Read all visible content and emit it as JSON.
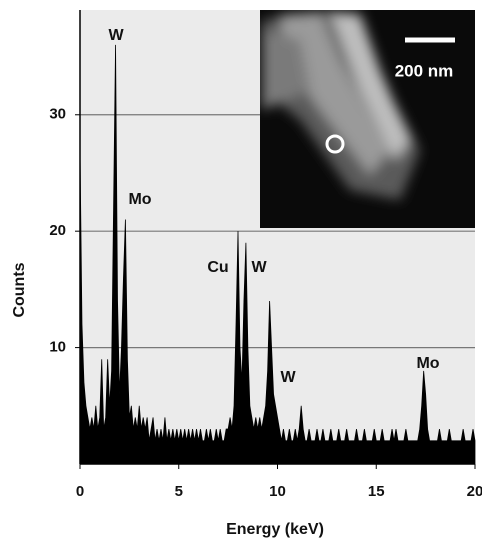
{
  "chart_data": {
    "type": "area",
    "x_label": "Energy (keV)",
    "y_label": "Counts",
    "x": [
      0.0,
      0.1,
      0.2,
      0.3,
      0.4,
      0.5,
      0.6,
      0.7,
      0.8,
      0.9,
      1.0,
      1.1,
      1.2,
      1.3,
      1.4,
      1.5,
      1.6,
      1.7,
      1.8,
      1.9,
      2.0,
      2.1,
      2.2,
      2.3,
      2.4,
      2.5,
      2.6,
      2.7,
      2.8,
      2.9,
      3.0,
      3.1,
      3.2,
      3.3,
      3.4,
      3.5,
      3.6,
      3.7,
      3.8,
      3.9,
      4.0,
      4.1,
      4.2,
      4.3,
      4.4,
      4.5,
      4.6,
      4.7,
      4.8,
      4.9,
      5.0,
      5.1,
      5.2,
      5.3,
      5.4,
      5.5,
      5.6,
      5.7,
      5.8,
      5.9,
      6.0,
      6.1,
      6.2,
      6.3,
      6.4,
      6.5,
      6.6,
      6.7,
      6.8,
      6.9,
      7.0,
      7.1,
      7.2,
      7.3,
      7.4,
      7.5,
      7.6,
      7.7,
      7.8,
      7.9,
      8.0,
      8.1,
      8.2,
      8.3,
      8.4,
      8.5,
      8.6,
      8.7,
      8.8,
      8.9,
      9.0,
      9.1,
      9.2,
      9.3,
      9.4,
      9.5,
      9.6,
      9.7,
      9.8,
      9.9,
      10.0,
      10.1,
      10.2,
      10.3,
      10.4,
      10.5,
      10.6,
      10.7,
      10.8,
      10.9,
      11.0,
      11.1,
      11.2,
      11.3,
      11.4,
      11.5,
      11.6,
      11.7,
      11.8,
      11.9,
      12.0,
      12.1,
      12.2,
      12.3,
      12.4,
      12.5,
      12.6,
      12.7,
      12.8,
      12.9,
      13.0,
      13.1,
      13.2,
      13.3,
      13.4,
      13.5,
      13.6,
      13.7,
      13.8,
      13.9,
      14.0,
      14.1,
      14.2,
      14.3,
      14.4,
      14.5,
      14.6,
      14.7,
      14.8,
      14.9,
      15.0,
      15.1,
      15.2,
      15.3,
      15.4,
      15.5,
      15.6,
      15.7,
      15.8,
      15.9,
      16.0,
      16.1,
      16.2,
      16.3,
      16.4,
      16.5,
      16.6,
      16.7,
      16.8,
      16.9,
      17.0,
      17.1,
      17.2,
      17.3,
      17.4,
      17.5,
      17.6,
      17.7,
      17.8,
      17.9,
      18.0,
      18.1,
      18.2,
      18.3,
      18.4,
      18.5,
      18.6,
      18.7,
      18.8,
      18.9,
      19.0,
      19.1,
      19.2,
      19.3,
      19.4,
      19.5,
      19.6,
      19.7,
      19.8,
      19.9,
      20.0
    ],
    "values": [
      27,
      12,
      7,
      5,
      4,
      3,
      4,
      3,
      5,
      3,
      4,
      9,
      3,
      4,
      9,
      5,
      8,
      22,
      36,
      14,
      6,
      10,
      16,
      21,
      9,
      4,
      5,
      3,
      4,
      3,
      5,
      3,
      4,
      3,
      4,
      2,
      3,
      4,
      2,
      3,
      2,
      3,
      2,
      4,
      2,
      3,
      2,
      3,
      2,
      3,
      2,
      3,
      2,
      3,
      2,
      3,
      2,
      3,
      2,
      3,
      2,
      3,
      2,
      2,
      3,
      2,
      3,
      2,
      2,
      3,
      2,
      3,
      2,
      2,
      3,
      3,
      4,
      3,
      5,
      12,
      20,
      10,
      7,
      14,
      19,
      10,
      5,
      4,
      3,
      4,
      3,
      4,
      3,
      4,
      5,
      8,
      14,
      10,
      6,
      5,
      4,
      3,
      2,
      3,
      2,
      2,
      3,
      2,
      2,
      3,
      2,
      3,
      5,
      3,
      2,
      2,
      3,
      2,
      2,
      2,
      3,
      2,
      2,
      3,
      2,
      2,
      2,
      3,
      2,
      2,
      2,
      3,
      2,
      2,
      2,
      3,
      2,
      2,
      2,
      2,
      3,
      2,
      2,
      2,
      3,
      2,
      2,
      2,
      2,
      3,
      2,
      2,
      2,
      3,
      2,
      2,
      2,
      2,
      3,
      2,
      3,
      2,
      2,
      2,
      2,
      3,
      2,
      2,
      2,
      2,
      2,
      2,
      3,
      5,
      8,
      6,
      3,
      2,
      2,
      2,
      2,
      2,
      3,
      2,
      2,
      2,
      2,
      3,
      2,
      2,
      2,
      2,
      2,
      2,
      3,
      2,
      2,
      2,
      2,
      3,
      2
    ],
    "color": "#000000",
    "xlim": [
      0,
      20
    ],
    "ylim": [
      0,
      39
    ],
    "xticks": [
      0,
      5,
      10,
      15,
      20
    ],
    "yticks": [
      10,
      20,
      30
    ],
    "grid": true,
    "annotations": [
      "W",
      "Mo",
      "Cu",
      "W",
      "W",
      "Mo"
    ],
    "inset_label": "200 nm"
  }
}
